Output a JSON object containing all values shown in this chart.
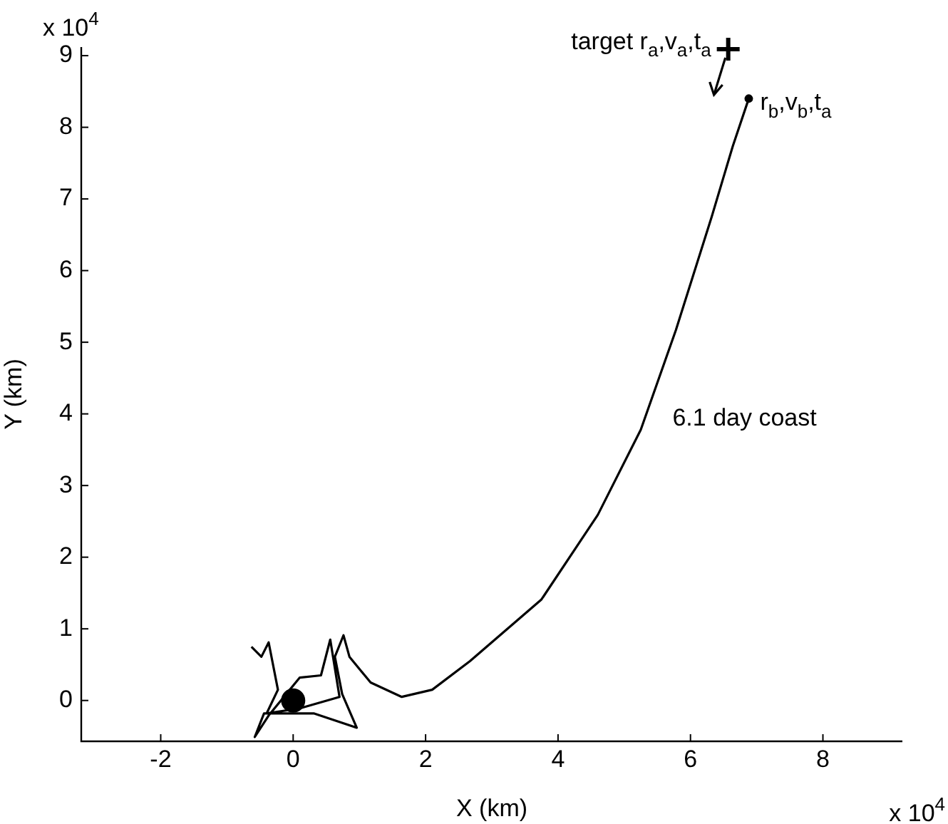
{
  "chart_data": {
    "type": "line",
    "xlabel": "X (km)",
    "ylabel": "Y (km)",
    "xlim": [
      -3.2,
      9.2
    ],
    "ylim": [
      -0.57,
      9.12
    ],
    "xticks": [
      -2,
      0,
      2,
      4,
      6,
      8
    ],
    "yticks": [
      0,
      1,
      2,
      3,
      4,
      5,
      6,
      7,
      8,
      9
    ],
    "grid": false,
    "legend": false,
    "line_style": "solid",
    "series": [
      {
        "color": "#000000",
        "marker": "none",
        "x": [
          -0.63,
          -0.48,
          -0.37,
          -0.23,
          -0.4,
          0.1,
          0.7,
          0.56,
          0.42,
          0.1,
          -0.37,
          -0.58,
          -0.44,
          0.31,
          0.96,
          0.74,
          0.63,
          0.76,
          0.85,
          1.17,
          1.64,
          2.1,
          2.67,
          3.75,
          4.6,
          5.25,
          5.78,
          6.32,
          6.64,
          6.88
        ],
        "values": [
          0.75,
          0.61,
          0.81,
          0.15,
          -0.18,
          -0.11,
          0.05,
          0.85,
          0.35,
          0.32,
          -0.21,
          -0.51,
          -0.18,
          -0.18,
          -0.38,
          0.09,
          0.61,
          0.91,
          0.61,
          0.25,
          0.05,
          0.15,
          0.55,
          1.41,
          2.59,
          3.78,
          5.17,
          6.75,
          7.74,
          8.4
        ]
      },
      {
        "type": "scatter",
        "color": "#000000",
        "marker": "circle",
        "x": [
          0
        ],
        "values": [
          0
        ]
      },
      {
        "type": "scatter",
        "color": "#000000",
        "marker": "circle",
        "x": [
          6.88
        ],
        "values": [
          8.4
        ]
      },
      {
        "type": "scatter",
        "color": "#000000",
        "marker": "cross",
        "x": [
          6.57
        ],
        "values": [
          9.09
        ]
      }
    ],
    "annotations": [
      "x 10$^{4}$",
      "x 10$^{4}$",
      "6.1 day coast",
      {
        "text": "target r$_{a}$,v$_{a}$,t$_{a}$",
        "x": 6.57,
        "y": 9.09
      },
      {
        "text": "r$_{b}$,v$_{b}$,t$_{a}$",
        "x": 6.88,
        "y": 8.4
      }
    ]
  }
}
